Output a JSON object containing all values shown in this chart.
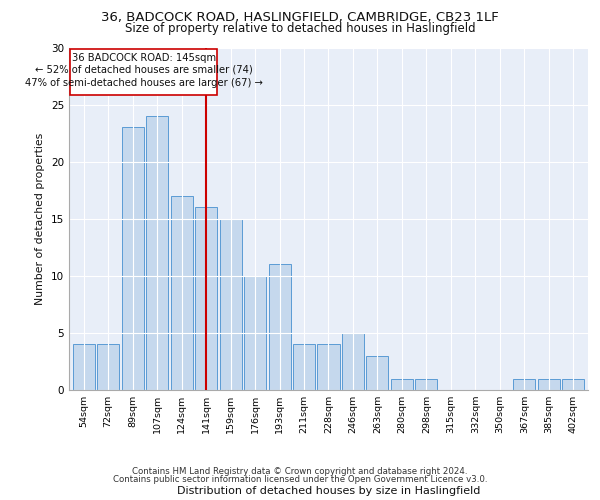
{
  "title_line1": "36, BADCOCK ROAD, HASLINGFIELD, CAMBRIDGE, CB23 1LF",
  "title_line2": "Size of property relative to detached houses in Haslingfield",
  "xlabel": "Distribution of detached houses by size in Haslingfield",
  "ylabel": "Number of detached properties",
  "categories": [
    "54sqm",
    "72sqm",
    "89sqm",
    "107sqm",
    "124sqm",
    "141sqm",
    "159sqm",
    "176sqm",
    "193sqm",
    "211sqm",
    "228sqm",
    "246sqm",
    "263sqm",
    "280sqm",
    "298sqm",
    "315sqm",
    "332sqm",
    "350sqm",
    "367sqm",
    "385sqm",
    "402sqm"
  ],
  "values": [
    4,
    4,
    23,
    24,
    17,
    16,
    15,
    10,
    11,
    4,
    4,
    5,
    3,
    1,
    1,
    0,
    0,
    0,
    1,
    1,
    1
  ],
  "bar_color": "#c5d8ed",
  "bar_edge_color": "#5b9bd5",
  "highlight_index": 5,
  "highlight_line_color": "#cc0000",
  "annotation_box_color": "#ffffff",
  "annotation_box_edge": "#cc0000",
  "annotation_text_line1": "36 BADCOCK ROAD: 145sqm",
  "annotation_text_line2": "← 52% of detached houses are smaller (74)",
  "annotation_text_line3": "47% of semi-detached houses are larger (67) →",
  "ylim": [
    0,
    30
  ],
  "yticks": [
    0,
    5,
    10,
    15,
    20,
    25,
    30
  ],
  "background_color": "#e8eef8",
  "footer_line1": "Contains HM Land Registry data © Crown copyright and database right 2024.",
  "footer_line2": "Contains public sector information licensed under the Open Government Licence v3.0."
}
